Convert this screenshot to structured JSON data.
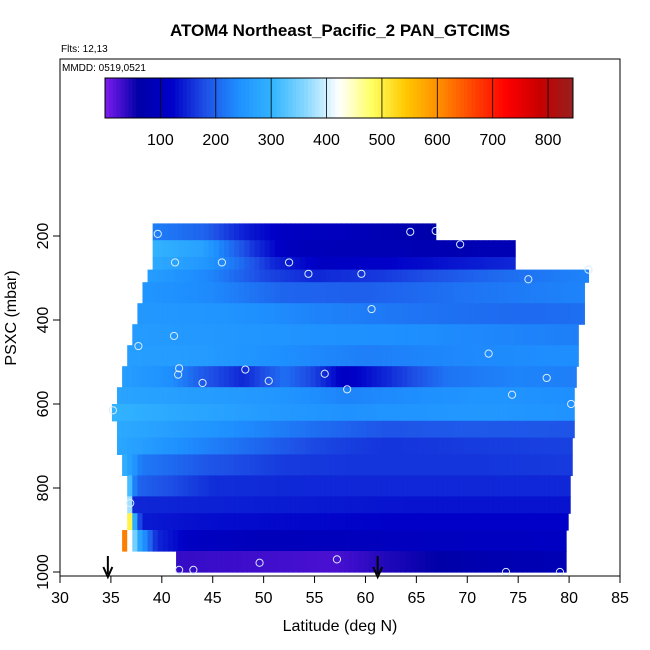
{
  "chart_data": {
    "type": "heatmap",
    "title": "ATOM4 Northeast_Pacific_2 PAN_GTCIMS",
    "annotations": [
      "Flts: 12,13",
      "MMDD: 0519,0521"
    ],
    "xlabel": "Latitude (deg N)",
    "ylabel": "PSXC (mbar)",
    "xlim": [
      30,
      85
    ],
    "ylim": [
      1000,
      0
    ],
    "x_ticks": [
      30,
      35,
      40,
      45,
      50,
      55,
      60,
      65,
      70,
      75,
      80,
      85
    ],
    "y_ticks": [
      200,
      400,
      600,
      800,
      1000
    ],
    "grid": false,
    "colorbar": {
      "placement": "top-inside",
      "range": [
        0,
        845
      ],
      "ticks": [
        100,
        200,
        300,
        400,
        500,
        600,
        700,
        800
      ],
      "palette": [
        "#7e1cf0",
        "#0000a8",
        "#0000c8",
        "#1e50e6",
        "#1e90ff",
        "#32b4ff",
        "#87d8ff",
        "#ffffff",
        "#ffff60",
        "#ffc800",
        "#ff8c00",
        "#ff4600",
        "#ff0000",
        "#c80000",
        "#962020"
      ]
    },
    "markers": [
      {
        "type": "arrow-down",
        "x": 34.7
      },
      {
        "type": "arrow-down",
        "x": 61.2
      }
    ],
    "bands": [
      {
        "p_top": 170,
        "p_bot": 210,
        "x_start": 39.1,
        "x_end": 66.9,
        "knots": [
          [
            39.1,
            225
          ],
          [
            44,
            200
          ],
          [
            48,
            145
          ],
          [
            52,
            110
          ],
          [
            58,
            100
          ],
          [
            62,
            80
          ],
          [
            66.9,
            65
          ]
        ]
      },
      {
        "p_top": 210,
        "p_bot": 250,
        "x_start": 39.1,
        "x_end": 74.7,
        "knots": [
          [
            39.1,
            300
          ],
          [
            44,
            270
          ],
          [
            49,
            160
          ],
          [
            53,
            95
          ],
          [
            60,
            85
          ],
          [
            68,
            80
          ],
          [
            74.7,
            85
          ]
        ]
      },
      {
        "p_top": 250,
        "p_bot": 280,
        "x_start": 39.1,
        "x_end": 74.7,
        "knots": [
          [
            39.1,
            285
          ],
          [
            44,
            255
          ],
          [
            47,
            220
          ],
          [
            51,
            150
          ],
          [
            56,
            110
          ],
          [
            62,
            120
          ],
          [
            70,
            140
          ],
          [
            74.7,
            150
          ]
        ]
      },
      {
        "p_top": 280,
        "p_bot": 310,
        "x_start": 38.6,
        "x_end": 81.9,
        "knots": [
          [
            38.6,
            265
          ],
          [
            45,
            230
          ],
          [
            50,
            175
          ],
          [
            55,
            150
          ],
          [
            62,
            165
          ],
          [
            70,
            195
          ],
          [
            76,
            215
          ],
          [
            81.9,
            230
          ]
        ]
      },
      {
        "p_top": 310,
        "p_bot": 360,
        "x_start": 38.1,
        "x_end": 81.5,
        "knots": [
          [
            38.1,
            250
          ],
          [
            45,
            235
          ],
          [
            52,
            200
          ],
          [
            60,
            195
          ],
          [
            70,
            215
          ],
          [
            81.5,
            230
          ]
        ]
      },
      {
        "p_top": 360,
        "p_bot": 410,
        "x_start": 37.6,
        "x_end": 81.5,
        "knots": [
          [
            37.6,
            255
          ],
          [
            45,
            250
          ],
          [
            55,
            230
          ],
          [
            65,
            215
          ],
          [
            75,
            205
          ],
          [
            81.5,
            210
          ]
        ]
      },
      {
        "p_top": 410,
        "p_bot": 460,
        "x_start": 37.1,
        "x_end": 80.9,
        "knots": [
          [
            37.1,
            260
          ],
          [
            45,
            255
          ],
          [
            55,
            245
          ],
          [
            65,
            240
          ],
          [
            75,
            230
          ],
          [
            80.9,
            225
          ]
        ]
      },
      {
        "p_top": 460,
        "p_bot": 510,
        "x_start": 36.6,
        "x_end": 80.9,
        "knots": [
          [
            36.6,
            265
          ],
          [
            44,
            260
          ],
          [
            52,
            240
          ],
          [
            60,
            225
          ],
          [
            70,
            235
          ],
          [
            80.9,
            240
          ]
        ]
      },
      {
        "p_top": 510,
        "p_bot": 560,
        "x_start": 36.1,
        "x_end": 80.7,
        "knots": [
          [
            36.1,
            265
          ],
          [
            41,
            240
          ],
          [
            44,
            190
          ],
          [
            48,
            150
          ],
          [
            52,
            210
          ],
          [
            55,
            170
          ],
          [
            58,
            110
          ],
          [
            62,
            150
          ],
          [
            68,
            215
          ],
          [
            75,
            230
          ],
          [
            80.7,
            225
          ]
        ]
      },
      {
        "p_top": 560,
        "p_bot": 600,
        "x_start": 35.6,
        "x_end": 80.5,
        "knots": [
          [
            35.6,
            275
          ],
          [
            42,
            265
          ],
          [
            50,
            255
          ],
          [
            58,
            230
          ],
          [
            65,
            240
          ],
          [
            72,
            250
          ],
          [
            80.5,
            240
          ]
        ]
      },
      {
        "p_top": 600,
        "p_bot": 640,
        "x_start": 35.1,
        "x_end": 80.5,
        "knots": [
          [
            35.1,
            300
          ],
          [
            42,
            280
          ],
          [
            50,
            260
          ],
          [
            58,
            245
          ],
          [
            65,
            250
          ],
          [
            72,
            255
          ],
          [
            80.5,
            245
          ]
        ]
      },
      {
        "p_top": 640,
        "p_bot": 680,
        "x_start": 35.6,
        "x_end": 80.5,
        "knots": [
          [
            35.6,
            285
          ],
          [
            42,
            260
          ],
          [
            50,
            230
          ],
          [
            55,
            210
          ],
          [
            62,
            185
          ],
          [
            70,
            190
          ],
          [
            80.5,
            185
          ]
        ]
      },
      {
        "p_top": 680,
        "p_bot": 720,
        "x_start": 35.6,
        "x_end": 80.3,
        "knots": [
          [
            35.6,
            280
          ],
          [
            42,
            240
          ],
          [
            50,
            200
          ],
          [
            55,
            175
          ],
          [
            62,
            160
          ],
          [
            70,
            165
          ],
          [
            80.3,
            170
          ]
        ]
      },
      {
        "p_top": 720,
        "p_bot": 770,
        "x_start": 36.1,
        "x_end": 80.3,
        "knots": [
          [
            36.1,
            300
          ],
          [
            38,
            220
          ],
          [
            45,
            185
          ],
          [
            52,
            165
          ],
          [
            60,
            160
          ],
          [
            70,
            160
          ],
          [
            80.3,
            165
          ]
        ]
      },
      {
        "p_top": 770,
        "p_bot": 820,
        "x_start": 36.6,
        "x_end": 80.1,
        "knots": [
          [
            36.6,
            360
          ],
          [
            37.5,
            200
          ],
          [
            45,
            155
          ],
          [
            55,
            150
          ],
          [
            65,
            150
          ],
          [
            80.1,
            150
          ]
        ]
      },
      {
        "p_top": 820,
        "p_bot": 860,
        "x_start": 36.6,
        "x_end": 80.1,
        "knots": [
          [
            36.6,
            500
          ],
          [
            37.3,
            150
          ],
          [
            45,
            145
          ],
          [
            55,
            140
          ],
          [
            65,
            135
          ],
          [
            80.1,
            135
          ]
        ]
      },
      {
        "p_top": 860,
        "p_bot": 900,
        "x_start": 36.6,
        "x_end": 79.9,
        "knots": [
          [
            36.6,
            620
          ],
          [
            37.2,
            320
          ],
          [
            38,
            140
          ],
          [
            45,
            130
          ],
          [
            55,
            125
          ],
          [
            65,
            120
          ],
          [
            79.9,
            120
          ]
        ]
      },
      {
        "p_top": 900,
        "p_bot": 950,
        "x_start": 36.1,
        "x_end": 79.7,
        "knots": [
          [
            36.1,
            720
          ],
          [
            36.8,
            430
          ],
          [
            37.8,
            280
          ],
          [
            39.5,
            150
          ],
          [
            43,
            110
          ],
          [
            50,
            95
          ],
          [
            60,
            100
          ],
          [
            70,
            105
          ],
          [
            79.7,
            110
          ]
        ]
      },
      {
        "p_top": 950,
        "p_bot": 1000,
        "x_start": 41.4,
        "x_end": 79.7,
        "knots": [
          [
            41.4,
            35
          ],
          [
            50,
            30
          ],
          [
            57,
            25
          ],
          [
            62,
            45
          ],
          [
            67,
            60
          ],
          [
            72,
            75
          ],
          [
            79.7,
            85
          ]
        ]
      }
    ],
    "points": [
      [
        39.6,
        195
      ],
      [
        41.3,
        263
      ],
      [
        45.9,
        263
      ],
      [
        52.5,
        263
      ],
      [
        54.4,
        290
      ],
      [
        59.6,
        290
      ],
      [
        60.6,
        374
      ],
      [
        64.4,
        190
      ],
      [
        66.9,
        188
      ],
      [
        69.3,
        220
      ],
      [
        76.0,
        303
      ],
      [
        81.9,
        280
      ],
      [
        41.2,
        438
      ],
      [
        37.7,
        462
      ],
      [
        41.7,
        515
      ],
      [
        41.6,
        530
      ],
      [
        44.0,
        550
      ],
      [
        48.2,
        518
      ],
      [
        50.5,
        545
      ],
      [
        56.0,
        528
      ],
      [
        58.2,
        565
      ],
      [
        72.1,
        480
      ],
      [
        77.8,
        538
      ],
      [
        74.4,
        578
      ],
      [
        80.2,
        600
      ],
      [
        35.2,
        615
      ],
      [
        36.9,
        836
      ],
      [
        41.7,
        995
      ],
      [
        43.1,
        995
      ],
      [
        49.6,
        978
      ],
      [
        57.2,
        970
      ],
      [
        73.8,
        1000
      ],
      [
        79.1,
        1000
      ]
    ]
  }
}
